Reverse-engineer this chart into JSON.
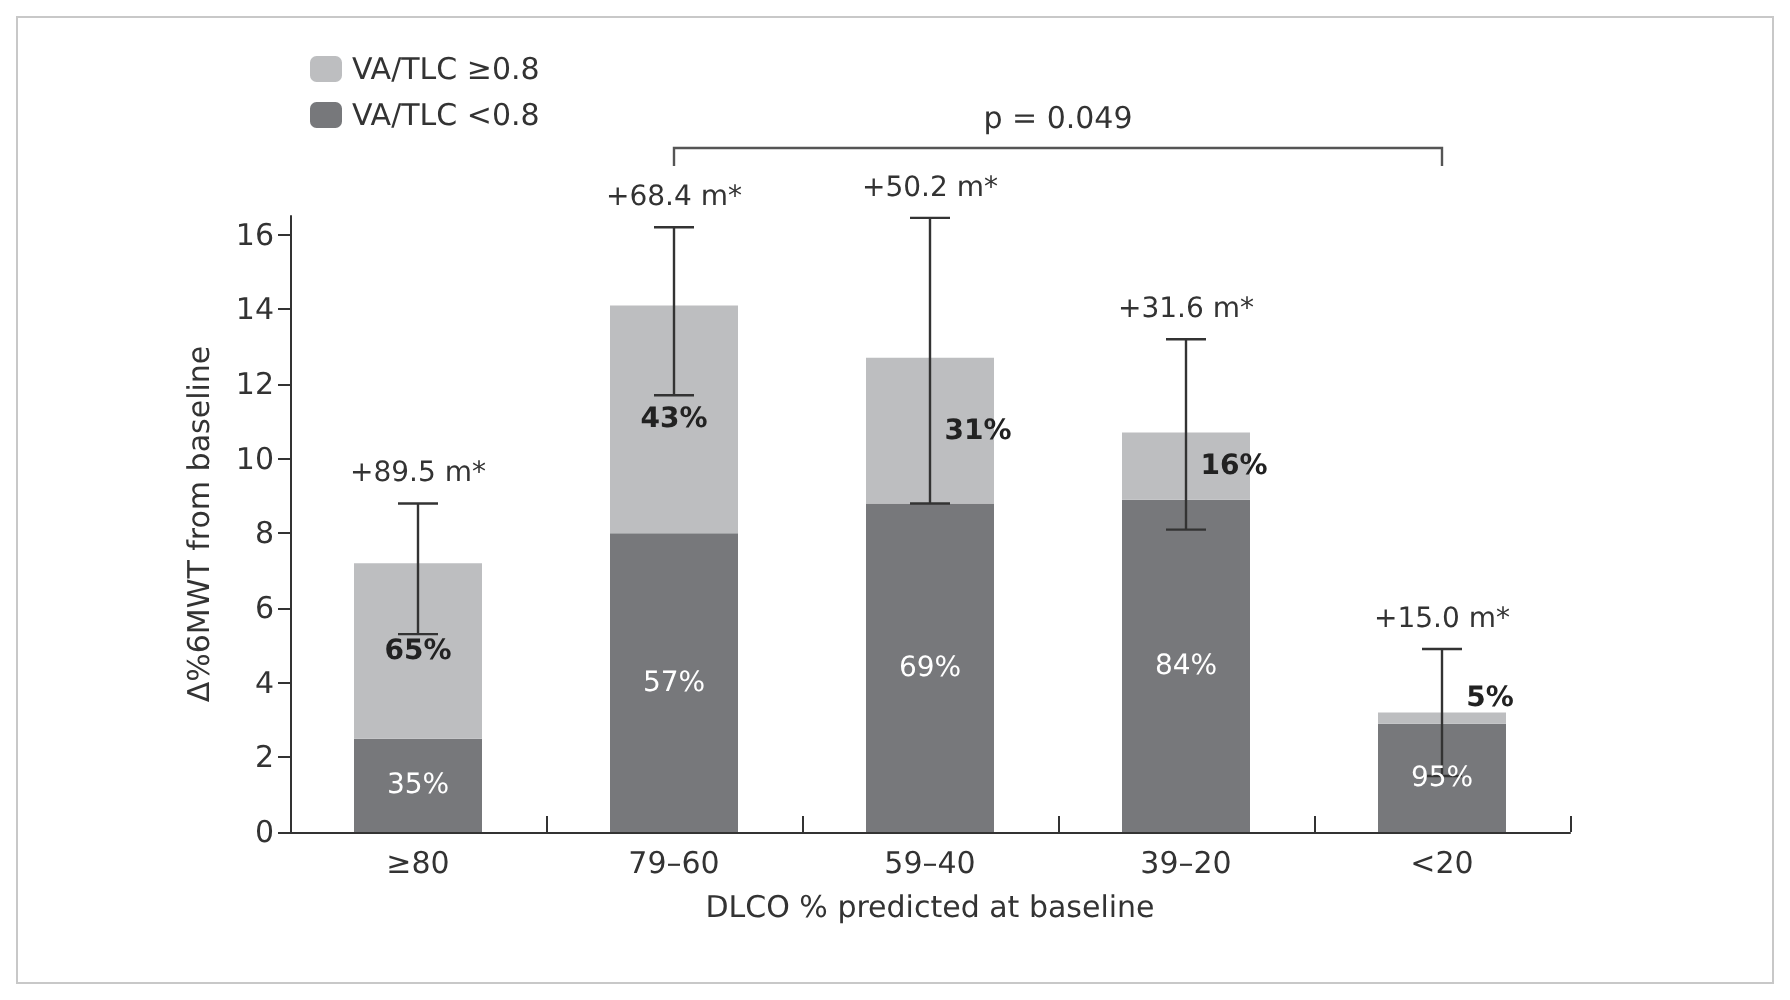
{
  "chart_data": {
    "type": "bar",
    "stacked": true,
    "ylabel": "Δ%6MWT from baseline",
    "xlabel": "DLCO % predicted at baseline",
    "categories": [
      "≥80",
      "79–60",
      "59–40",
      "39–20",
      "<20"
    ],
    "series": [
      {
        "name": "VA/TLC <0.8",
        "color": "#77787b",
        "values": [
          2.5,
          8.0,
          8.8,
          8.9,
          2.9
        ]
      },
      {
        "name": "VA/TLC ≥0.8",
        "color": "#bdbec0",
        "values": [
          4.7,
          6.1,
          3.9,
          1.8,
          0.3
        ],
        "errors": [
          [
            5.3,
            8.8
          ],
          [
            11.7,
            16.2
          ],
          [
            8.8,
            16.45
          ],
          [
            8.1,
            13.2
          ],
          [
            1.5,
            4.9
          ]
        ]
      }
    ],
    "ylim": [
      0,
      16.5
    ],
    "yticks": [
      0,
      2,
      4,
      6,
      8,
      10,
      12,
      14,
      16
    ],
    "grid": false,
    "legend": "top left",
    "annotations": [
      {
        "text": "+89.5 m*",
        "x": "≥80",
        "y": 8.8
      },
      {
        "text": "+68.4 m*",
        "x": "79–60",
        "y": 16.2
      },
      {
        "text": "+50.2 m*",
        "x": "59–40",
        "y": 16.45
      },
      {
        "text": "+31.6 m*",
        "x": "39–20",
        "y": 13.2
      },
      {
        "text": "+15.0 m*",
        "x": "<20",
        "y": 4.9
      },
      "35%",
      "57%",
      "69%",
      "84%",
      "95%",
      "65%",
      "43%",
      "31%",
      "16%",
      "5%",
      "p = 0.049"
    ]
  }
}
